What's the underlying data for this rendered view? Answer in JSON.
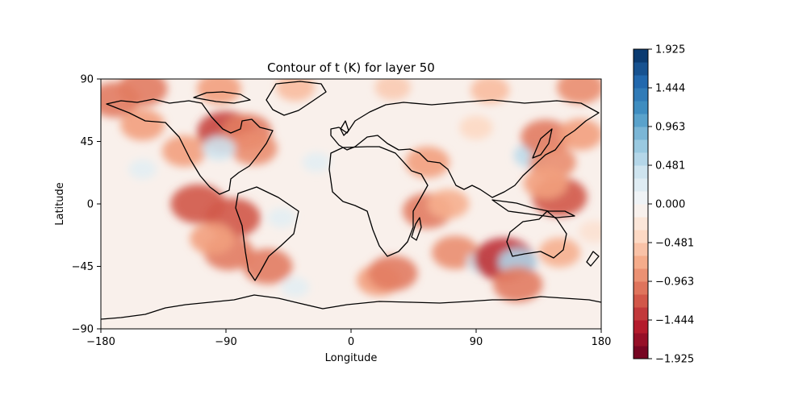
{
  "chart_data": {
    "type": "heatmap",
    "title": "Contour of t (K) for layer 50",
    "xlabel": "Longitude",
    "ylabel": "Latitude",
    "xlim": [
      -180,
      180
    ],
    "ylim": [
      -90,
      90
    ],
    "x_ticks": [
      -180,
      -90,
      0,
      90,
      180
    ],
    "x_tick_labels": [
      "−180",
      "−90",
      "0",
      "90",
      "180"
    ],
    "y_ticks": [
      -90,
      -45,
      0,
      45,
      90
    ],
    "y_tick_labels": [
      "−90",
      "−45",
      "0",
      "45",
      "90"
    ],
    "colormap": "RdBu",
    "color_range": [
      -1.925,
      1.925
    ],
    "colorbar_ticks": [
      1.925,
      1.444,
      0.963,
      0.481,
      0.0,
      -0.481,
      -0.963,
      -1.444,
      -1.925
    ],
    "colorbar_tick_labels": [
      "1.925",
      "1.444",
      "0.963",
      "0.481",
      "0.000",
      "−0.481",
      "−0.963",
      "−1.444",
      "−1.925"
    ],
    "background_level": -0.1,
    "features": [
      {
        "lon": -150,
        "lat": 83,
        "value": -1.0
      },
      {
        "lon": -95,
        "lat": 83,
        "value": -0.8
      },
      {
        "lon": -40,
        "lat": 84,
        "value": -0.6
      },
      {
        "lon": 30,
        "lat": 84,
        "value": -0.5
      },
      {
        "lon": 100,
        "lat": 82,
        "value": -0.6
      },
      {
        "lon": 165,
        "lat": 84,
        "value": -0.9
      },
      {
        "lon": -170,
        "lat": 75,
        "value": -1.0
      },
      {
        "lon": -150,
        "lat": 57,
        "value": -0.8
      },
      {
        "lon": -90,
        "lat": 52,
        "value": -1.3
      },
      {
        "lon": -75,
        "lat": 52,
        "value": -1.0
      },
      {
        "lon": -70,
        "lat": 40,
        "value": -0.9
      },
      {
        "lon": -120,
        "lat": 38,
        "value": -0.8
      },
      {
        "lon": -95,
        "lat": 40,
        "value": 0.4
      },
      {
        "lon": -150,
        "lat": 25,
        "value": 0.2
      },
      {
        "lon": -110,
        "lat": 0,
        "value": -1.2
      },
      {
        "lon": -85,
        "lat": -10,
        "value": -1.2
      },
      {
        "lon": -88,
        "lat": -35,
        "value": -1.0
      },
      {
        "lon": -100,
        "lat": -25,
        "value": -0.8
      },
      {
        "lon": -60,
        "lat": -45,
        "value": -1.0
      },
      {
        "lon": -50,
        "lat": -10,
        "value": 0.2
      },
      {
        "lon": -40,
        "lat": -60,
        "value": 0.2
      },
      {
        "lon": 20,
        "lat": -55,
        "value": -0.8
      },
      {
        "lon": 30,
        "lat": -50,
        "value": -1.0
      },
      {
        "lon": 55,
        "lat": 30,
        "value": -0.8
      },
      {
        "lon": 55,
        "lat": -5,
        "value": -1.0
      },
      {
        "lon": 70,
        "lat": 0,
        "value": -0.7
      },
      {
        "lon": 75,
        "lat": -35,
        "value": -0.9
      },
      {
        "lon": 95,
        "lat": -42,
        "value": 0.4
      },
      {
        "lon": 110,
        "lat": -40,
        "value": -1.4
      },
      {
        "lon": 120,
        "lat": -42,
        "value": 0.6
      },
      {
        "lon": 120,
        "lat": -58,
        "value": -1.0
      },
      {
        "lon": 130,
        "lat": 35,
        "value": 0.5
      },
      {
        "lon": 140,
        "lat": 48,
        "value": -1.0
      },
      {
        "lon": 150,
        "lat": 5,
        "value": -1.2
      },
      {
        "lon": 145,
        "lat": 30,
        "value": -0.9
      },
      {
        "lon": 140,
        "lat": 15,
        "value": -0.8
      },
      {
        "lon": 150,
        "lat": -35,
        "value": -0.7
      },
      {
        "lon": 165,
        "lat": 50,
        "value": -0.8
      },
      {
        "lon": 90,
        "lat": 55,
        "value": -0.4
      },
      {
        "lon": -25,
        "lat": 30,
        "value": 0.2
      },
      {
        "lon": 175,
        "lat": -20,
        "value": -0.3
      }
    ]
  }
}
